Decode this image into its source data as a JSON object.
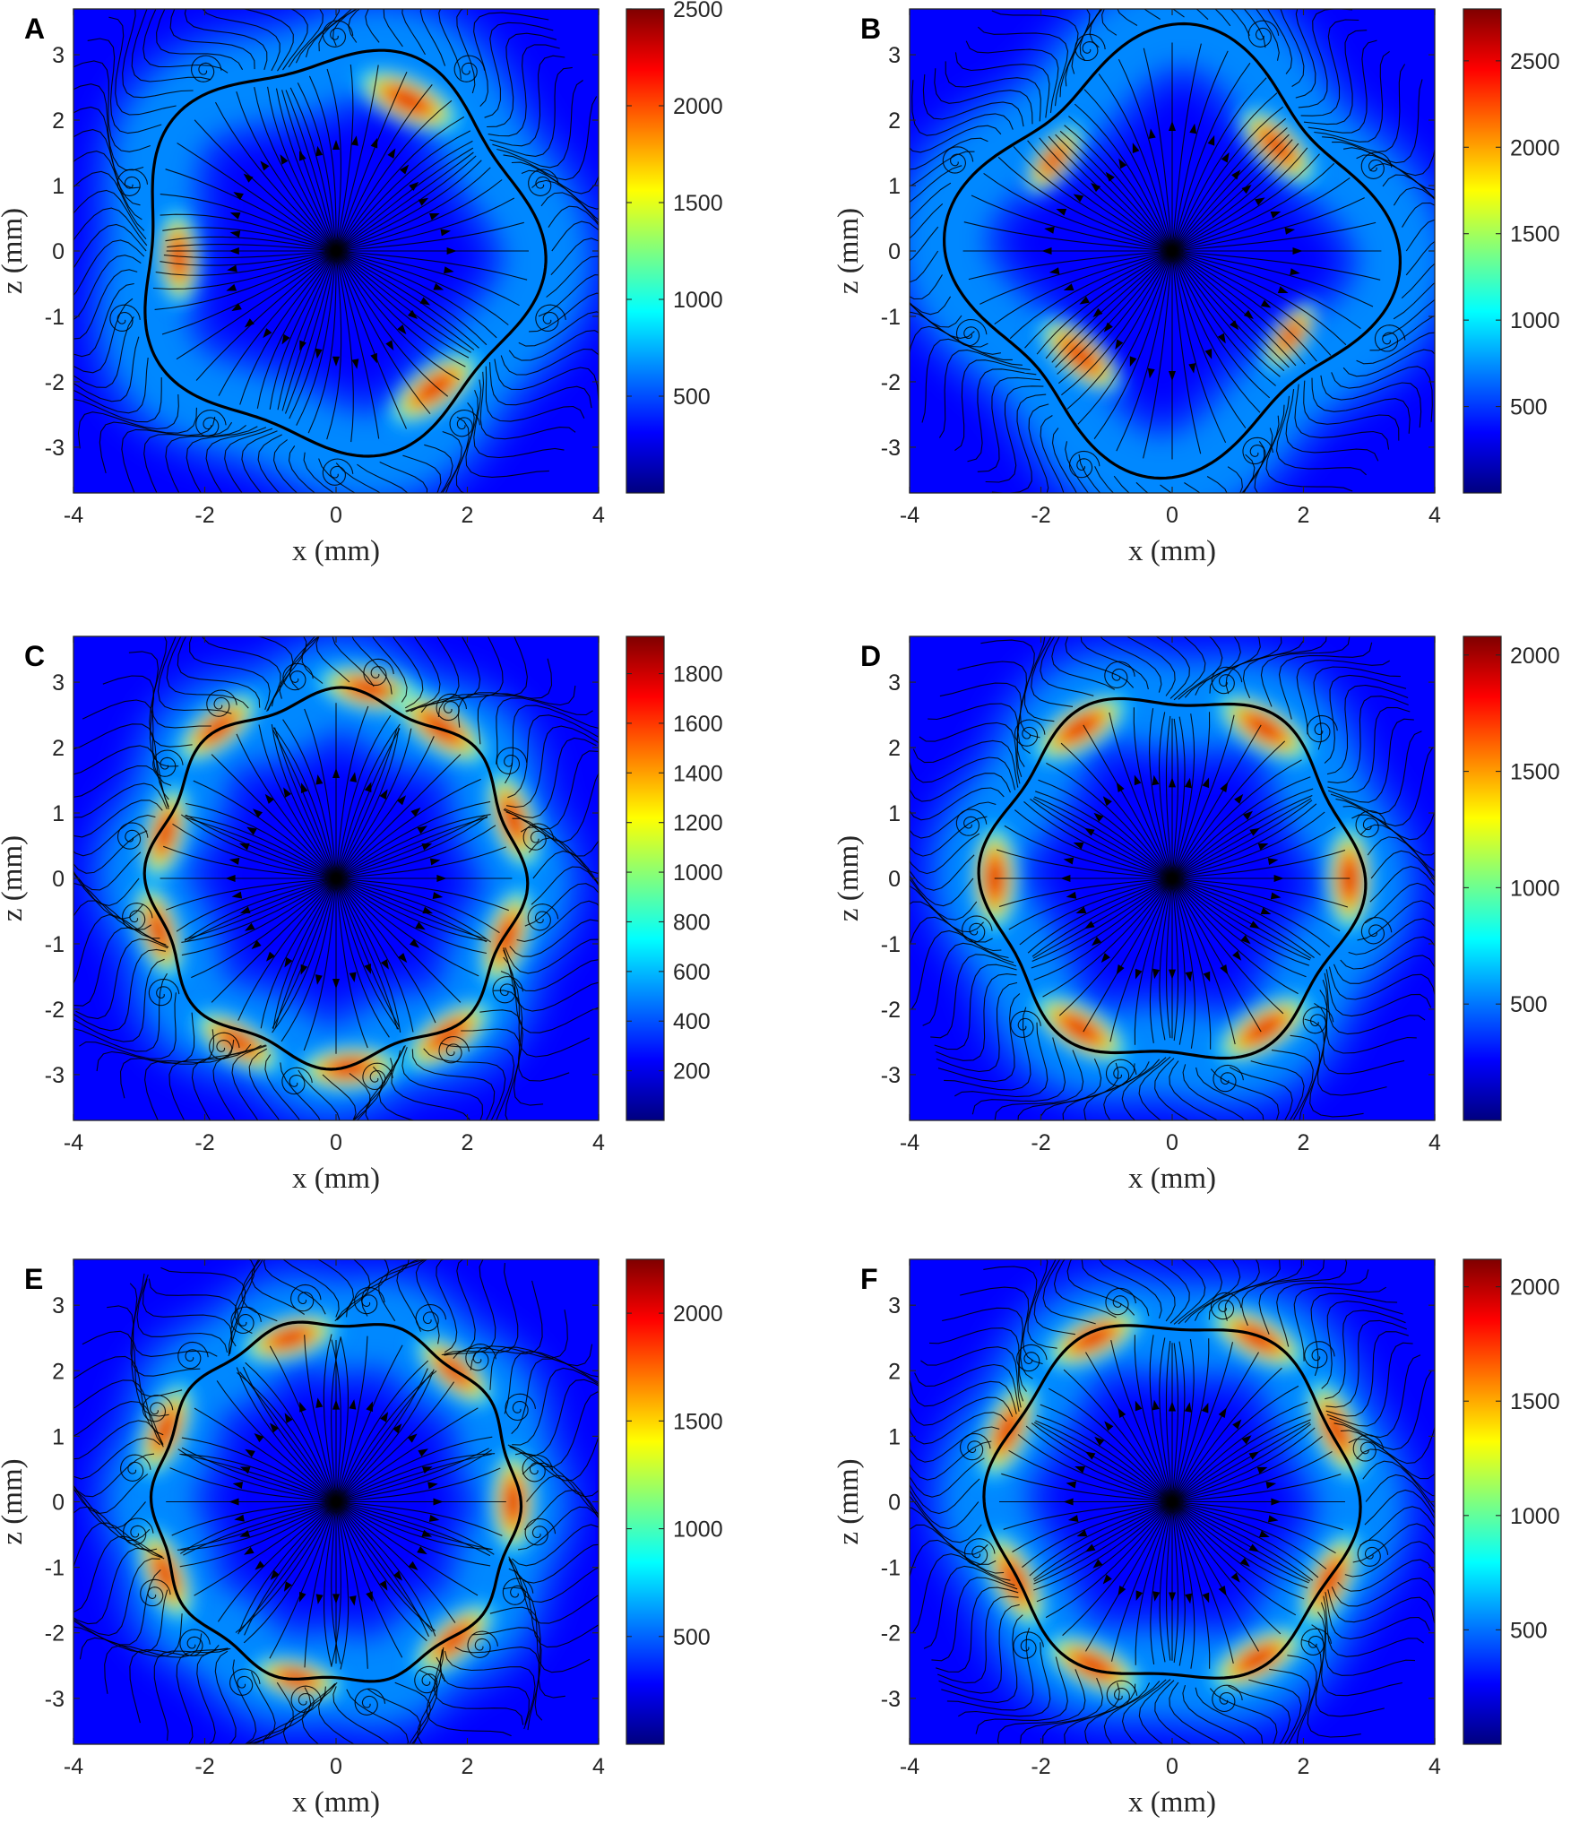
{
  "figure": {
    "colors": {
      "colormap": [
        "#00007f",
        "#0000ff",
        "#007fff",
        "#00ffff",
        "#7fff7f",
        "#ffff00",
        "#ff7f00",
        "#ff0000",
        "#7f0000"
      ],
      "streamline": "#000000",
      "axis": "#262626",
      "contour": "#000000"
    }
  },
  "chart_data": [
    {
      "panel": "A",
      "type": "heatmap",
      "xlabel": "x (mm)",
      "ylabel": "z (mm)",
      "xlim": [
        -4,
        4
      ],
      "ylim": [
        -3.7,
        3.7
      ],
      "xticks": [
        -4,
        -2,
        0,
        2,
        4
      ],
      "yticks": [
        3,
        2,
        1,
        0,
        -1,
        -2,
        -3
      ],
      "colorbar": {
        "range": [
          0,
          2500
        ],
        "ticks": [
          2500,
          2000,
          1500,
          1000,
          500
        ]
      },
      "interface": {
        "mean_radius": 3.0,
        "lobes": 5,
        "amplitude": 0.2
      },
      "hotspots": [
        {
          "x": 1.1,
          "z": 2.3,
          "value": 2500
        },
        {
          "x": -2.4,
          "z": -0.1,
          "value": 2100
        },
        {
          "x": 1.5,
          "z": -2.1,
          "value": 2400
        }
      ]
    },
    {
      "panel": "B",
      "type": "heatmap",
      "xlabel": "x (mm)",
      "ylabel": "z (mm)",
      "xlim": [
        -4,
        4
      ],
      "ylim": [
        -3.7,
        3.7
      ],
      "xticks": [
        -4,
        -2,
        0,
        2,
        4
      ],
      "yticks": [
        3,
        2,
        1,
        0,
        -1,
        -2,
        -3
      ],
      "colorbar": {
        "range": [
          0,
          2800
        ],
        "ticks": [
          2500,
          2000,
          1500,
          1000,
          500
        ]
      },
      "interface": {
        "mean_radius": 3.1,
        "lobes": 4,
        "amplitude": 0.38
      },
      "hotspots": [
        {
          "x": -1.8,
          "z": 1.4,
          "value": 2000
        },
        {
          "x": 1.6,
          "z": 1.6,
          "value": 2500
        },
        {
          "x": -1.4,
          "z": -1.6,
          "value": 2600
        },
        {
          "x": 1.8,
          "z": -1.3,
          "value": 1900
        }
      ]
    },
    {
      "panel": "C",
      "type": "heatmap",
      "xlabel": "x (mm)",
      "ylabel": "z (mm)",
      "xlim": [
        -4,
        4
      ],
      "ylim": [
        -3.7,
        3.7
      ],
      "xticks": [
        -4,
        -2,
        0,
        2,
        4
      ],
      "yticks": [
        3,
        2,
        1,
        0,
        -1,
        -2,
        -3
      ],
      "colorbar": {
        "range": [
          0,
          1950
        ],
        "ticks": [
          1800,
          1600,
          1400,
          1200,
          1000,
          800,
          600,
          400,
          200
        ]
      },
      "interface": {
        "mean_radius": 2.8,
        "lobes": 8,
        "amplitude": 0.12
      },
      "hotspots": [
        {
          "x": -1.8,
          "z": 2.3,
          "value": 1700
        },
        {
          "x": 0.5,
          "z": 2.9,
          "value": 1800
        },
        {
          "x": 1.6,
          "z": 2.3,
          "value": 1900
        },
        {
          "x": 2.7,
          "z": 0.9,
          "value": 1800
        },
        {
          "x": 2.6,
          "z": -0.9,
          "value": 1800
        },
        {
          "x": 1.7,
          "z": -2.4,
          "value": 1800
        },
        {
          "x": 0.2,
          "z": -2.9,
          "value": 1800
        },
        {
          "x": -1.5,
          "z": -2.5,
          "value": 1700
        },
        {
          "x": -2.7,
          "z": -0.8,
          "value": 1700
        },
        {
          "x": -2.6,
          "z": 0.7,
          "value": 1700
        }
      ]
    },
    {
      "panel": "D",
      "type": "heatmap",
      "xlabel": "x (mm)",
      "ylabel": "z (mm)",
      "xlim": [
        -4,
        4
      ],
      "ylim": [
        -3.7,
        3.7
      ],
      "xticks": [
        -4,
        -2,
        0,
        2,
        4
      ],
      "yticks": [
        3,
        2,
        1,
        0,
        -1,
        -2,
        -3
      ],
      "colorbar": {
        "range": [
          0,
          2080
        ],
        "ticks": [
          2000,
          1500,
          1000,
          500
        ]
      },
      "interface": {
        "mean_radius": 2.8,
        "lobes": 6,
        "amplitude": 0.15
      },
      "hotspots": [
        {
          "x": 2.7,
          "z": 0.0,
          "value": 2000
        },
        {
          "x": 1.4,
          "z": 2.3,
          "value": 2000
        },
        {
          "x": -1.4,
          "z": 2.3,
          "value": 2000
        },
        {
          "x": -2.7,
          "z": 0.0,
          "value": 2000
        },
        {
          "x": -1.4,
          "z": -2.3,
          "value": 2000
        },
        {
          "x": 1.4,
          "z": -2.3,
          "value": 2000
        }
      ]
    },
    {
      "panel": "E",
      "type": "heatmap",
      "xlabel": "x (mm)",
      "ylabel": "z (mm)",
      "xlim": [
        -4,
        4
      ],
      "ylim": [
        -3.7,
        3.7
      ],
      "xticks": [
        -4,
        -2,
        0,
        2,
        4
      ],
      "yticks": [
        3,
        2,
        1,
        0,
        -1,
        -2,
        -3
      ],
      "colorbar": {
        "range": [
          0,
          2250
        ],
        "ticks": [
          2000,
          1500,
          1000,
          500
        ]
      },
      "interface": {
        "mean_radius": 2.75,
        "lobes": 10,
        "amplitude": 0.07
      },
      "hotspots": [
        {
          "x": -0.7,
          "z": 2.5,
          "value": 2000
        },
        {
          "x": 1.8,
          "z": 2.0,
          "value": 1900
        },
        {
          "x": 2.7,
          "z": 0.0,
          "value": 2100
        },
        {
          "x": 1.8,
          "z": -2.1,
          "value": 2000
        },
        {
          "x": -0.6,
          "z": -2.7,
          "value": 1800
        },
        {
          "x": -2.6,
          "z": -1.1,
          "value": 2000
        },
        {
          "x": -2.6,
          "z": 1.1,
          "value": 2000
        }
      ]
    },
    {
      "panel": "F",
      "type": "heatmap",
      "xlabel": "x (mm)",
      "ylabel": "z (mm)",
      "xlim": [
        -4,
        4
      ],
      "ylim": [
        -3.7,
        3.7
      ],
      "xticks": [
        -4,
        -2,
        0,
        2,
        4
      ],
      "yticks": [
        3,
        2,
        1,
        0,
        -1,
        -2,
        -3
      ],
      "colorbar": {
        "range": [
          0,
          2120
        ],
        "ticks": [
          2000,
          1500,
          1000,
          500
        ]
      },
      "interface": {
        "mean_radius": 2.75,
        "lobes": 6,
        "amplitude": 0.12
      },
      "hotspots": [
        {
          "x": -1.2,
          "z": 2.5,
          "value": 2000
        },
        {
          "x": 1.3,
          "z": 2.5,
          "value": 2000
        },
        {
          "x": 2.5,
          "z": 1.1,
          "value": 2000
        },
        {
          "x": 2.4,
          "z": -1.2,
          "value": 2000
        },
        {
          "x": 1.3,
          "z": -2.4,
          "value": 2000
        },
        {
          "x": -1.2,
          "z": -2.5,
          "value": 2000
        },
        {
          "x": -2.4,
          "z": -1.2,
          "value": 2000
        },
        {
          "x": -2.5,
          "z": 1.1,
          "value": 2000
        }
      ]
    }
  ]
}
